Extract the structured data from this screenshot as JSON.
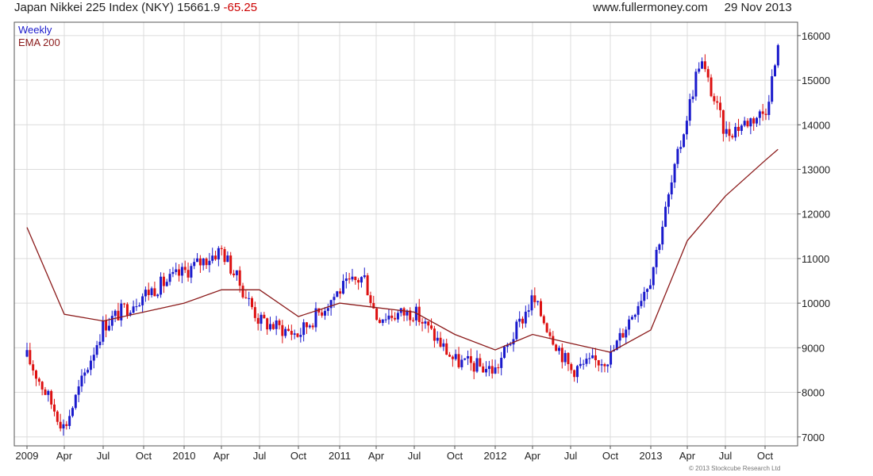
{
  "header": {
    "title": "Japan Nikkei 225 Index (NKY)",
    "price": "15661.9",
    "change": "-65.25",
    "website": "www.fullermoney.com",
    "date": "29 Nov 2013"
  },
  "copyright": "© 2013 Stockcube Research Ltd",
  "chart_data": {
    "type": "line",
    "frequency_label": "Weekly",
    "ylim": [
      6800,
      16300
    ],
    "y_ticks": [
      7000,
      8000,
      9000,
      10000,
      11000,
      12000,
      13000,
      14000,
      15000,
      16000
    ],
    "x_ticks": [
      "2009",
      "Apr",
      "Jul",
      "Oct",
      "2010",
      "Apr",
      "Jul",
      "Oct",
      "2011",
      "Apr",
      "Jul",
      "Oct",
      "2012",
      "Apr",
      "Jul",
      "Oct",
      "2013",
      "Apr",
      "Jul",
      "Oct"
    ],
    "grid": true,
    "legend_position": "top-left",
    "colors": {
      "up": "#1a1acc",
      "down": "#dd1111",
      "ema": "#8b1a1a",
      "grid": "#dcdcdc"
    },
    "series": [
      {
        "name": "Weekly",
        "periods": [
          "Jan 2009",
          "Apr 2009",
          "Jul 2009",
          "Oct 2009",
          "Jan 2010",
          "Apr 2010",
          "Jul 2010",
          "Oct 2010",
          "Jan 2011",
          "Mar 2011",
          "Apr 2011",
          "Jul 2011",
          "Oct 2011",
          "Jan 2012",
          "Apr 2012",
          "Jul 2012",
          "Oct 2012",
          "Jan 2013",
          "May 2013",
          "Jul 2013",
          "Oct 2013",
          "Nov 2013"
        ],
        "values": [
          8800,
          7200,
          9500,
          10200,
          10700,
          11200,
          9600,
          9300,
          10300,
          10600,
          9700,
          9800,
          8700,
          8500,
          10100,
          8500,
          8800,
          10600,
          15500,
          13800,
          14300,
          15662
        ]
      },
      {
        "name": "EMA 200",
        "periods": [
          "Jan 2009",
          "Apr 2009",
          "Jul 2009",
          "Oct 2009",
          "Jan 2010",
          "Apr 2010",
          "Jul 2010",
          "Oct 2010",
          "Jan 2011",
          "Apr 2011",
          "Jul 2011",
          "Oct 2011",
          "Jan 2012",
          "Apr 2012",
          "Jul 2012",
          "Oct 2012",
          "Jan 2013",
          "Apr 2013",
          "Jul 2013",
          "Oct 2013",
          "Nov 2013"
        ],
        "values": [
          11700,
          9750,
          9600,
          9800,
          10000,
          10300,
          10300,
          9700,
          10000,
          9900,
          9800,
          9300,
          8950,
          9300,
          9100,
          8900,
          9400,
          11400,
          12400,
          13200,
          13450
        ]
      }
    ]
  }
}
